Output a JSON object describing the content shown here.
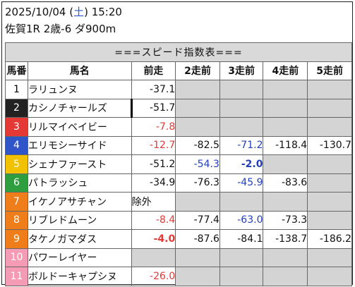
{
  "header": {
    "date": "2025/10/04 (",
    "weekday": "土",
    "time": ") 15:20",
    "race": "佐賀1R 2歳-6 ダ900m"
  },
  "table": {
    "title": "===スピード指数表===",
    "columns": [
      "馬番",
      "馬名",
      "前走",
      "2走前",
      "3走前",
      "4走前",
      "5走前"
    ],
    "rows": [
      {
        "num": "1",
        "name": "ラリュンヌ",
        "bg": "#ffffff",
        "fg": "#000000",
        "cells": [
          {
            "v": "-37.1",
            "c": ""
          },
          {
            "v": "",
            "c": ""
          },
          {
            "v": "",
            "c": ""
          },
          {
            "v": "",
            "c": ""
          },
          {
            "v": "",
            "c": ""
          }
        ]
      },
      {
        "num": "2",
        "name": "カシノチャールズ",
        "bg": "#222222",
        "fg": "#ffffff",
        "mark": true,
        "cells": [
          {
            "v": "-51.7",
            "c": ""
          },
          {
            "v": "",
            "c": ""
          },
          {
            "v": "",
            "c": ""
          },
          {
            "v": "",
            "c": ""
          },
          {
            "v": "",
            "c": ""
          }
        ]
      },
      {
        "num": "3",
        "name": "リルマイベイビー",
        "bg": "#e53935",
        "fg": "#ffffff",
        "cells": [
          {
            "v": "-7.8",
            "c": "red"
          },
          {
            "v": "",
            "c": ""
          },
          {
            "v": "",
            "c": ""
          },
          {
            "v": "",
            "c": ""
          },
          {
            "v": "",
            "c": ""
          }
        ]
      },
      {
        "num": "4",
        "name": "エリモシーサイド",
        "bg": "#2f55c8",
        "fg": "#ffffff",
        "cells": [
          {
            "v": "-12.7",
            "c": "red"
          },
          {
            "v": "-82.5",
            "c": ""
          },
          {
            "v": "-71.2",
            "c": "blue"
          },
          {
            "v": "-118.4",
            "c": ""
          },
          {
            "v": "-130.7",
            "c": ""
          }
        ]
      },
      {
        "num": "5",
        "name": "シェナファースト",
        "bg": "#f2c200",
        "fg": "#ffffff",
        "cells": [
          {
            "v": "-51.2",
            "c": ""
          },
          {
            "v": "-54.3",
            "c": "blue"
          },
          {
            "v": "-2.0",
            "c": "bluebold"
          },
          {
            "v": "",
            "c": ""
          },
          {
            "v": "",
            "c": ""
          }
        ]
      },
      {
        "num": "6",
        "name": "パトラッシュ",
        "bg": "#2e9e3e",
        "fg": "#ffffff",
        "cells": [
          {
            "v": "-34.9",
            "c": ""
          },
          {
            "v": "-76.3",
            "c": ""
          },
          {
            "v": "-45.9",
            "c": "blue"
          },
          {
            "v": "-83.6",
            "c": ""
          },
          {
            "v": "",
            "c": ""
          }
        ]
      },
      {
        "num": "7",
        "name": "イケノアサチャン",
        "bg": "#ee7d1a",
        "fg": "#ffffff",
        "cells": [
          {
            "v": "除外",
            "c": "text"
          },
          {
            "v": "",
            "c": ""
          },
          {
            "v": "",
            "c": ""
          },
          {
            "v": "",
            "c": ""
          },
          {
            "v": "",
            "c": ""
          }
        ]
      },
      {
        "num": "8",
        "name": "リブレドムーン",
        "bg": "#ee7d1a",
        "fg": "#ffffff",
        "cells": [
          {
            "v": "-8.4",
            "c": "red"
          },
          {
            "v": "-77.4",
            "c": ""
          },
          {
            "v": "-63.0",
            "c": "blue"
          },
          {
            "v": "-73.3",
            "c": ""
          },
          {
            "v": "",
            "c": ""
          }
        ]
      },
      {
        "num": "9",
        "name": "タケノガマダス",
        "bg": "#ee7d1a",
        "fg": "#ffffff",
        "cells": [
          {
            "v": "-4.0",
            "c": "redbold"
          },
          {
            "v": "-87.6",
            "c": ""
          },
          {
            "v": "-84.1",
            "c": ""
          },
          {
            "v": "-138.7",
            "c": ""
          },
          {
            "v": "-186.2",
            "c": ""
          }
        ]
      },
      {
        "num": "10",
        "name": "パワーレイヤー",
        "bg": "#f59bb5",
        "fg": "#ffffff",
        "cells": [
          {
            "v": "",
            "c": ""
          },
          {
            "v": "",
            "c": ""
          },
          {
            "v": "",
            "c": ""
          },
          {
            "v": "",
            "c": ""
          },
          {
            "v": "",
            "c": ""
          }
        ]
      },
      {
        "num": "11",
        "name": "ボルドーキャプシヌ",
        "bg": "#f59bb5",
        "fg": "#ffffff",
        "cells": [
          {
            "v": "-26.0",
            "c": "red"
          },
          {
            "v": "",
            "c": ""
          },
          {
            "v": "",
            "c": ""
          },
          {
            "v": "",
            "c": ""
          },
          {
            "v": "",
            "c": ""
          }
        ]
      }
    ]
  }
}
